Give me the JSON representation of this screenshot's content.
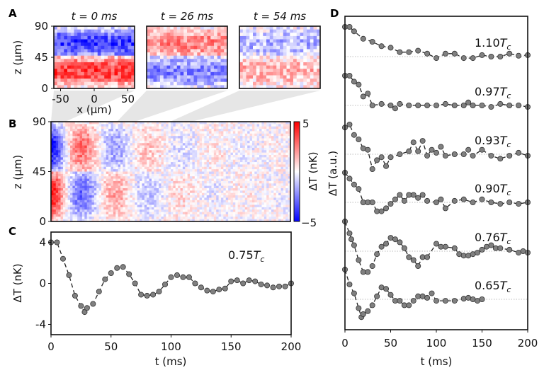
{
  "panel_labels": {
    "a": "A",
    "b": "B",
    "c": "C",
    "d": "D"
  },
  "chart_data": [
    {
      "panel": "A",
      "type": "heatmap",
      "titles": [
        "t = 0 ms",
        "t = 26 ms",
        "t = 54 ms"
      ],
      "xlabel": "x (μm)",
      "ylabel": "z (μm)",
      "xlim": [
        -60,
        60
      ],
      "ylim": [
        0,
        90
      ],
      "xticks": [
        -50,
        0,
        50
      ],
      "yticks": [
        0,
        45,
        90
      ],
      "colormap": "bwr",
      "colors": {
        "negative": "#0000ff",
        "zero": "#ffffff",
        "positive": "#ff0000"
      }
    },
    {
      "panel": "B",
      "type": "heatmap",
      "ylabel": "z (μm)",
      "xlim": [
        0,
        200
      ],
      "ylim": [
        0,
        90
      ],
      "yticks": [
        0,
        45,
        90
      ],
      "colorbar": {
        "label": "ΔT (nK)",
        "range": [
          -5,
          5
        ],
        "tick_labels": [
          "5",
          "−5"
        ]
      }
    },
    {
      "panel": "C",
      "type": "scatter",
      "xlabel": "t (ms)",
      "ylabel": "ΔT (nK)",
      "xlim": [
        0,
        200
      ],
      "ylim": [
        -5,
        5
      ],
      "xticks": [
        0,
        50,
        100,
        150,
        200
      ],
      "yticks": [
        4,
        0,
        -4
      ],
      "ytick_labels": [
        "4",
        "0",
        "-4"
      ],
      "annotation": "0.75Tc",
      "fit_style": "dashed",
      "x": [
        0,
        5,
        10,
        15,
        20,
        25,
        28,
        30,
        35,
        40,
        45,
        50,
        55,
        60,
        65,
        70,
        75,
        80,
        85,
        90,
        95,
        100,
        105,
        110,
        115,
        120,
        125,
        130,
        135,
        140,
        145,
        150,
        155,
        160,
        165,
        170,
        175,
        180,
        185,
        190,
        195,
        200
      ],
      "y": [
        4,
        4,
        2.4,
        0.8,
        -1.2,
        -2.2,
        -2.8,
        -2.4,
        -2,
        -0.8,
        0.4,
        1,
        1.5,
        1.6,
        0.9,
        0,
        -1.1,
        -1.2,
        -1.1,
        -0.8,
        -0.1,
        0.6,
        0.8,
        0.6,
        0.6,
        0,
        -0.4,
        -0.7,
        -0.8,
        -0.6,
        -0.5,
        0.2,
        0.3,
        0,
        0.3,
        0.2,
        -0.1,
        -0.2,
        -0.4,
        -0.3,
        -0.3,
        0
      ]
    },
    {
      "panel": "D",
      "type": "scatter",
      "xlabel": "t (ms)",
      "ylabel": "ΔT (a.u.)",
      "xlim": [
        0,
        200
      ],
      "xticks": [
        0,
        50,
        100,
        150,
        200
      ],
      "fit_style": "dashed",
      "baseline_style": "dotted",
      "series": [
        {
          "name": "1.10Tc",
          "x": [
            0,
            5,
            10,
            20,
            30,
            40,
            50,
            60,
            70,
            80,
            90,
            100,
            110,
            120,
            130,
            140,
            150,
            160,
            170,
            180,
            190,
            200
          ],
          "y": [
            1,
            1,
            0.85,
            0.6,
            0.5,
            0.35,
            0.3,
            0.15,
            0.15,
            0.2,
            0.1,
            -0.05,
            0.1,
            0.1,
            -0.05,
            -0.05,
            0.05,
            0,
            0,
            0.1,
            0.03,
            0.05
          ]
        },
        {
          "name": "0.97Tc",
          "x": [
            0,
            5,
            10,
            15,
            20,
            25,
            30,
            40,
            50,
            55,
            60,
            70,
            80,
            90,
            100,
            110,
            120,
            130,
            135,
            140,
            150,
            160,
            170,
            180,
            190,
            200
          ],
          "y": [
            1,
            1,
            0.8,
            0.7,
            0.3,
            0.4,
            0,
            0.05,
            0,
            -0.1,
            0.05,
            0,
            0,
            0,
            0,
            0.05,
            0,
            0,
            0.1,
            0,
            0,
            -0.05,
            0.05,
            0,
            0,
            -0.05
          ]
        },
        {
          "name": "0.93Tc",
          "x": [
            0,
            5,
            10,
            15,
            20,
            25,
            30,
            35,
            40,
            45,
            50,
            60,
            70,
            75,
            80,
            85,
            90,
            95,
            100,
            105,
            110,
            120,
            130,
            135,
            140,
            150,
            160,
            170,
            180,
            190,
            200
          ],
          "y": [
            0.9,
            1,
            0.65,
            0.5,
            0.2,
            0.15,
            -0.5,
            -0.2,
            -0.1,
            -0.4,
            -0.1,
            0,
            0.1,
            0.4,
            0.1,
            0.45,
            -0.05,
            0.15,
            0.05,
            0.25,
            -0.05,
            0,
            0,
            0.15,
            -0.05,
            0.15,
            -0.05,
            -0.15,
            -0.05,
            0.05,
            -0.05
          ]
        },
        {
          "name": "0.90Tc",
          "x": [
            0,
            5,
            10,
            15,
            20,
            25,
            30,
            35,
            40,
            45,
            50,
            55,
            60,
            65,
            70,
            75,
            80,
            85,
            90,
            100,
            105,
            110,
            120,
            130,
            140,
            150,
            160,
            170,
            180,
            190,
            200
          ],
          "y": [
            1,
            0.8,
            0.6,
            0.45,
            0,
            0,
            0,
            -0.3,
            -0.3,
            -0.2,
            -0.05,
            0.1,
            0.25,
            0.05,
            0.25,
            0.25,
            0.15,
            0.25,
            0.05,
            0,
            0.1,
            -0.2,
            0.05,
            0.1,
            0,
            0.1,
            0,
            -0.05,
            0,
            -0.05,
            0
          ]
        },
        {
          "name": "0.76Tc",
          "x": [
            0,
            5,
            7,
            10,
            15,
            20,
            25,
            30,
            35,
            40,
            45,
            50,
            55,
            60,
            65,
            70,
            75,
            80,
            85,
            90,
            100,
            105,
            110,
            120,
            125,
            130,
            135,
            140,
            145,
            150,
            155,
            160,
            165,
            170,
            180,
            190,
            195,
            200
          ],
          "y": [
            1,
            0.6,
            0.4,
            0.2,
            -0.3,
            -0.7,
            -0.7,
            -0.5,
            -0.1,
            0.15,
            0.25,
            0.45,
            0.4,
            0.3,
            0.1,
            -0.2,
            -0.3,
            -0.5,
            -0.2,
            -0.2,
            0.25,
            0.15,
            0.15,
            0.1,
            -0.1,
            -0.15,
            -0.15,
            -0.1,
            -0.05,
            0.05,
            0.15,
            0.2,
            0.1,
            0.1,
            0.05,
            -0.05,
            0,
            -0.05
          ]
        },
        {
          "name": "0.65Tc",
          "x": [
            0,
            5,
            10,
            15,
            18,
            20,
            25,
            30,
            35,
            40,
            45,
            50,
            55,
            60,
            65,
            70,
            75,
            80,
            85,
            90,
            95,
            100,
            110,
            120,
            130,
            135,
            140,
            145,
            150
          ],
          "y": [
            1,
            0.5,
            0.2,
            -0.3,
            -0.6,
            -0.5,
            -0.4,
            -0.2,
            0.1,
            0.4,
            0.35,
            0.15,
            -0.05,
            -0.05,
            -0.2,
            -0.2,
            -0.05,
            0.1,
            0.1,
            0.05,
            0.2,
            -0.05,
            -0.05,
            -0.05,
            0.02,
            0.05,
            0,
            -0.05,
            0
          ]
        }
      ]
    }
  ]
}
